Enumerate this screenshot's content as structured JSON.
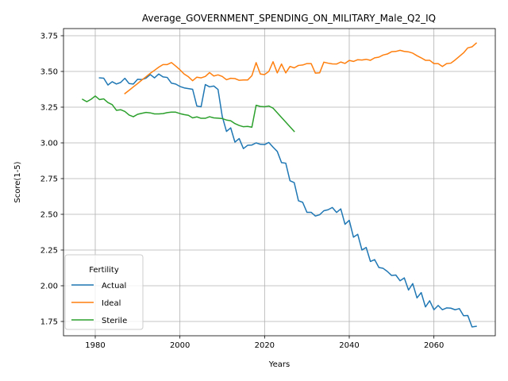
{
  "chart_data": {
    "type": "line",
    "title": "Average_GOVERNMENT_SPENDING_ON_MILITARY_Male_Q2_IQ",
    "xlabel": "Years",
    "ylabel": "Score(1-5)",
    "xlim": [
      1972.5,
      2074.5
    ],
    "ylim": [
      1.65,
      3.8
    ],
    "xticks": [
      1980,
      2000,
      2020,
      2040,
      2060
    ],
    "yticks": [
      1.75,
      2.0,
      2.25,
      2.5,
      2.75,
      3.0,
      3.25,
      3.5,
      3.75
    ],
    "grid": true,
    "legend": {
      "title": "Fertility",
      "placement": "lower-left"
    },
    "series": [
      {
        "name": "Actual",
        "color": "#1f77b4",
        "points": [
          [
            1981,
            3.455
          ],
          [
            1982,
            3.453
          ],
          [
            1983,
            3.405
          ],
          [
            1984,
            3.428
          ],
          [
            1985,
            3.412
          ],
          [
            1986,
            3.423
          ],
          [
            1987,
            3.452
          ],
          [
            1988,
            3.415
          ],
          [
            1989,
            3.412
          ],
          [
            1990,
            3.445
          ],
          [
            1991,
            3.443
          ],
          [
            1992,
            3.453
          ],
          [
            1993,
            3.478
          ],
          [
            1994,
            3.455
          ],
          [
            1995,
            3.482
          ],
          [
            1996,
            3.462
          ],
          [
            1997,
            3.458
          ],
          [
            1998,
            3.418
          ],
          [
            1999,
            3.412
          ],
          [
            2000,
            3.395
          ],
          [
            2001,
            3.385
          ],
          [
            2002,
            3.38
          ],
          [
            2003,
            3.375
          ],
          [
            2004,
            3.258
          ],
          [
            2005,
            3.253
          ],
          [
            2006,
            3.408
          ],
          [
            2007,
            3.392
          ],
          [
            2008,
            3.398
          ],
          [
            2009,
            3.374
          ],
          [
            2010,
            3.185
          ],
          [
            2011,
            3.08
          ],
          [
            2012,
            3.105
          ],
          [
            2013,
            3.005
          ],
          [
            2014,
            3.03
          ],
          [
            2015,
            2.96
          ],
          [
            2016,
            2.983
          ],
          [
            2017,
            2.985
          ],
          [
            2018,
            3.0
          ],
          [
            2019,
            2.99
          ],
          [
            2020,
            2.988
          ],
          [
            2021,
            3.003
          ],
          [
            2022,
            2.97
          ],
          [
            2023,
            2.94
          ],
          [
            2024,
            2.862
          ],
          [
            2025,
            2.858
          ],
          [
            2026,
            2.735
          ],
          [
            2027,
            2.722
          ],
          [
            2028,
            2.595
          ],
          [
            2029,
            2.584
          ],
          [
            2030,
            2.514
          ],
          [
            2031,
            2.514
          ],
          [
            2032,
            2.488
          ],
          [
            2033,
            2.497
          ],
          [
            2034,
            2.525
          ],
          [
            2035,
            2.532
          ],
          [
            2036,
            2.548
          ],
          [
            2037,
            2.513
          ],
          [
            2038,
            2.538
          ],
          [
            2039,
            2.43
          ],
          [
            2040,
            2.458
          ],
          [
            2041,
            2.34
          ],
          [
            2042,
            2.36
          ],
          [
            2043,
            2.25
          ],
          [
            2044,
            2.268
          ],
          [
            2045,
            2.17
          ],
          [
            2046,
            2.183
          ],
          [
            2047,
            2.128
          ],
          [
            2048,
            2.122
          ],
          [
            2049,
            2.1
          ],
          [
            2050,
            2.072
          ],
          [
            2051,
            2.075
          ],
          [
            2052,
            2.035
          ],
          [
            2053,
            2.055
          ],
          [
            2054,
            1.97
          ],
          [
            2055,
            2.015
          ],
          [
            2056,
            1.915
          ],
          [
            2057,
            1.952
          ],
          [
            2058,
            1.852
          ],
          [
            2059,
            1.895
          ],
          [
            2060,
            1.832
          ],
          [
            2061,
            1.862
          ],
          [
            2062,
            1.832
          ],
          [
            2063,
            1.845
          ],
          [
            2064,
            1.843
          ],
          [
            2065,
            1.832
          ],
          [
            2066,
            1.84
          ],
          [
            2067,
            1.79
          ],
          [
            2068,
            1.792
          ],
          [
            2069,
            1.712
          ],
          [
            2070,
            1.716
          ]
        ]
      },
      {
        "name": "Ideal",
        "color": "#ff7f0e",
        "points": [
          [
            1987,
            3.345
          ],
          [
            1988,
            3.368
          ],
          [
            1989,
            3.392
          ],
          [
            1990,
            3.415
          ],
          [
            1991,
            3.44
          ],
          [
            1992,
            3.463
          ],
          [
            1993,
            3.487
          ],
          [
            1994,
            3.508
          ],
          [
            1995,
            3.53
          ],
          [
            1996,
            3.548
          ],
          [
            1997,
            3.548
          ],
          [
            1998,
            3.562
          ],
          [
            1999,
            3.538
          ],
          [
            2000,
            3.512
          ],
          [
            2001,
            3.482
          ],
          [
            2002,
            3.463
          ],
          [
            2003,
            3.435
          ],
          [
            2004,
            3.46
          ],
          [
            2005,
            3.455
          ],
          [
            2006,
            3.465
          ],
          [
            2007,
            3.492
          ],
          [
            2008,
            3.468
          ],
          [
            2009,
            3.476
          ],
          [
            2010,
            3.465
          ],
          [
            2011,
            3.442
          ],
          [
            2012,
            3.452
          ],
          [
            2013,
            3.45
          ],
          [
            2014,
            3.438
          ],
          [
            2015,
            3.44
          ],
          [
            2016,
            3.44
          ],
          [
            2017,
            3.47
          ],
          [
            2018,
            3.562
          ],
          [
            2019,
            3.482
          ],
          [
            2020,
            3.478
          ],
          [
            2021,
            3.5
          ],
          [
            2022,
            3.568
          ],
          [
            2023,
            3.49
          ],
          [
            2024,
            3.552
          ],
          [
            2025,
            3.49
          ],
          [
            2026,
            3.535
          ],
          [
            2027,
            3.525
          ],
          [
            2028,
            3.542
          ],
          [
            2029,
            3.545
          ],
          [
            2030,
            3.555
          ],
          [
            2031,
            3.555
          ],
          [
            2032,
            3.488
          ],
          [
            2033,
            3.49
          ],
          [
            2034,
            3.565
          ],
          [
            2035,
            3.558
          ],
          [
            2036,
            3.553
          ],
          [
            2037,
            3.552
          ],
          [
            2038,
            3.566
          ],
          [
            2039,
            3.556
          ],
          [
            2040,
            3.577
          ],
          [
            2041,
            3.57
          ],
          [
            2042,
            3.582
          ],
          [
            2043,
            3.58
          ],
          [
            2044,
            3.585
          ],
          [
            2045,
            3.578
          ],
          [
            2046,
            3.595
          ],
          [
            2047,
            3.6
          ],
          [
            2048,
            3.615
          ],
          [
            2049,
            3.622
          ],
          [
            2050,
            3.638
          ],
          [
            2051,
            3.64
          ],
          [
            2052,
            3.648
          ],
          [
            2053,
            3.64
          ],
          [
            2054,
            3.637
          ],
          [
            2055,
            3.628
          ],
          [
            2056,
            3.61
          ],
          [
            2057,
            3.595
          ],
          [
            2058,
            3.578
          ],
          [
            2059,
            3.578
          ],
          [
            2060,
            3.555
          ],
          [
            2061,
            3.555
          ],
          [
            2062,
            3.535
          ],
          [
            2063,
            3.555
          ],
          [
            2064,
            3.558
          ],
          [
            2065,
            3.58
          ],
          [
            2066,
            3.605
          ],
          [
            2067,
            3.63
          ],
          [
            2068,
            3.665
          ],
          [
            2069,
            3.672
          ],
          [
            2070,
            3.698
          ]
        ]
      },
      {
        "name": "Sterile",
        "color": "#2ca02c",
        "points": [
          [
            1977,
            3.305
          ],
          [
            1978,
            3.288
          ],
          [
            1979,
            3.305
          ],
          [
            1980,
            3.328
          ],
          [
            1981,
            3.303
          ],
          [
            1982,
            3.308
          ],
          [
            1983,
            3.282
          ],
          [
            1984,
            3.268
          ],
          [
            1985,
            3.228
          ],
          [
            1986,
            3.232
          ],
          [
            1987,
            3.22
          ],
          [
            1988,
            3.195
          ],
          [
            1989,
            3.183
          ],
          [
            1990,
            3.2
          ],
          [
            1991,
            3.207
          ],
          [
            1992,
            3.213
          ],
          [
            1993,
            3.21
          ],
          [
            1994,
            3.203
          ],
          [
            1995,
            3.203
          ],
          [
            1996,
            3.205
          ],
          [
            1997,
            3.212
          ],
          [
            1998,
            3.215
          ],
          [
            1999,
            3.215
          ],
          [
            2000,
            3.205
          ],
          [
            2001,
            3.198
          ],
          [
            2002,
            3.193
          ],
          [
            2003,
            3.175
          ],
          [
            2004,
            3.182
          ],
          [
            2005,
            3.172
          ],
          [
            2006,
            3.172
          ],
          [
            2007,
            3.183
          ],
          [
            2008,
            3.175
          ],
          [
            2009,
            3.173
          ],
          [
            2010,
            3.17
          ],
          [
            2011,
            3.16
          ],
          [
            2012,
            3.155
          ],
          [
            2013,
            3.135
          ],
          [
            2014,
            3.122
          ],
          [
            2015,
            3.113
          ],
          [
            2016,
            3.115
          ],
          [
            2017,
            3.11
          ],
          [
            2018,
            3.263
          ],
          [
            2019,
            3.255
          ],
          [
            2020,
            3.253
          ],
          [
            2021,
            3.258
          ],
          [
            2022,
            3.243
          ],
          [
            2027,
            3.08
          ]
        ]
      }
    ]
  }
}
